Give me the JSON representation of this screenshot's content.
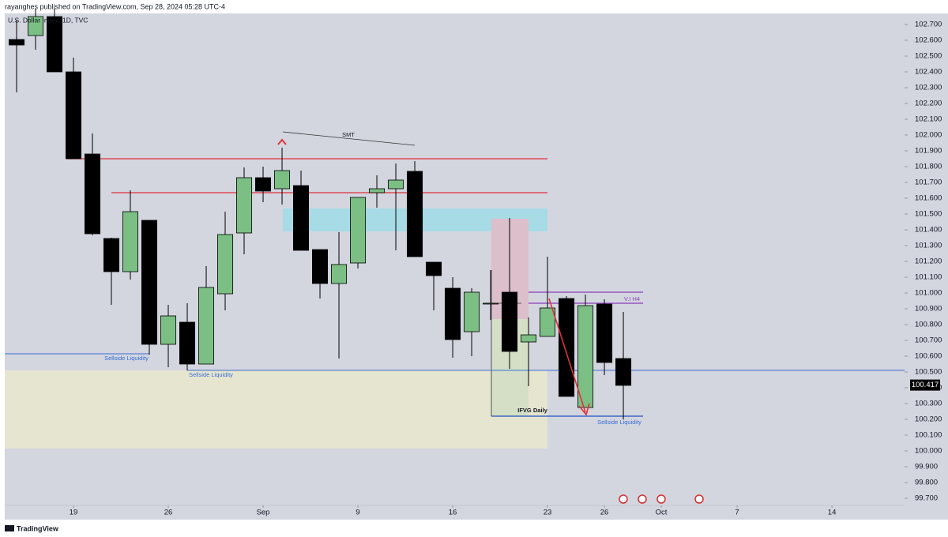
{
  "header": "rayanghes published on TradingView.com, Sep 28, 2024 05:28 UTC-4",
  "footer": "TradingView",
  "chart_data": {
    "type": "candlestick",
    "title": "U.S. Dollar Index, 1D, TVC",
    "x": [
      0,
      1,
      2,
      3,
      4,
      5,
      6,
      7,
      8,
      9,
      10,
      11,
      12,
      13,
      14,
      15,
      16,
      17,
      18,
      19,
      20,
      21,
      22,
      23,
      24,
      25,
      26,
      27,
      28,
      29,
      30,
      31,
      32
    ],
    "open": [
      102.605,
      102.63,
      102.75,
      102.4,
      101.88,
      101.345,
      101.135,
      101.46,
      100.675,
      100.815,
      100.55,
      100.995,
      101.38,
      101.73,
      101.66,
      101.68,
      101.275,
      101.06,
      101.19,
      101.635,
      101.66,
      101.77,
      101.195,
      101.03,
      100.755,
      100.935,
      101.005,
      100.69,
      100.725,
      100.965,
      100.275,
      100.93,
      100.585
    ],
    "high": [
      102.73,
      102.8,
      102.8,
      102.49,
      102.01,
      101.35,
      101.65,
      101.46,
      100.925,
      100.935,
      101.17,
      101.515,
      101.795,
      101.8,
      101.92,
      101.775,
      101.275,
      101.385,
      101.605,
      101.745,
      101.82,
      101.835,
      101.195,
      101.1,
      101.03,
      101.145,
      101.475,
      100.845,
      101.23,
      100.98,
      100.99,
      100.96,
      100.88
    ],
    "low": [
      102.27,
      102.54,
      102.4,
      101.85,
      101.365,
      100.925,
      101.085,
      100.61,
      100.53,
      100.51,
      100.55,
      100.89,
      101.245,
      101.575,
      101.56,
      101.27,
      100.965,
      100.585,
      101.155,
      101.54,
      101.27,
      101.23,
      100.89,
      100.59,
      100.6,
      100.83,
      100.52,
      100.41,
      100.725,
      100.345,
      100.275,
      100.48,
      100.2
    ],
    "close": [
      102.57,
      102.75,
      102.4,
      101.85,
      101.375,
      101.135,
      101.515,
      100.675,
      100.855,
      100.55,
      101.035,
      101.37,
      101.73,
      101.645,
      101.775,
      101.27,
      101.06,
      101.18,
      101.605,
      101.66,
      101.715,
      101.23,
      101.11,
      100.705,
      101.005,
      100.935,
      100.63,
      100.735,
      100.905,
      100.345,
      100.92,
      100.56,
      100.415
    ],
    "up_color": "#7cbf84",
    "down_color": "#000000",
    "last_price": 100.417,
    "xlim": [
      -0.625,
      46.83
    ],
    "xticks": [
      {
        "value": 3,
        "label": "19"
      },
      {
        "value": 8,
        "label": "26"
      },
      {
        "value": 13,
        "label": "Sep"
      },
      {
        "value": 18,
        "label": "9"
      },
      {
        "value": 23,
        "label": "16"
      },
      {
        "value": 28,
        "label": "23"
      },
      {
        "value": 31,
        "label": "26"
      },
      {
        "value": 34,
        "label": "Oct"
      },
      {
        "value": 38,
        "label": "7"
      },
      {
        "value": 43,
        "label": "14"
      }
    ],
    "ylim": [
      99.565,
      102.77
    ],
    "yticks": [
      {
        "value": 99.7,
        "label": "99.700"
      },
      {
        "value": 99.8,
        "label": "99.800"
      },
      {
        "value": 99.9,
        "label": "99.900"
      },
      {
        "value": 100.0,
        "label": "100.000"
      },
      {
        "value": 100.1,
        "label": "100.100"
      },
      {
        "value": 100.2,
        "label": "100.200"
      },
      {
        "value": 100.3,
        "label": "100.300"
      },
      {
        "value": 100.4,
        "label": "100.400"
      },
      {
        "value": 100.5,
        "label": "100.500"
      },
      {
        "value": 100.6,
        "label": "100.600"
      },
      {
        "value": 100.7,
        "label": "100.700"
      },
      {
        "value": 100.8,
        "label": "100.800"
      },
      {
        "value": 100.9,
        "label": "100.900"
      },
      {
        "value": 101.0,
        "label": "101.000"
      },
      {
        "value": 101.1,
        "label": "101.100"
      },
      {
        "value": 101.2,
        "label": "101.200"
      },
      {
        "value": 101.3,
        "label": "101.300"
      },
      {
        "value": 101.4,
        "label": "101.400"
      },
      {
        "value": 101.5,
        "label": "101.500"
      },
      {
        "value": 101.6,
        "label": "101.600"
      },
      {
        "value": 101.7,
        "label": "101.700"
      },
      {
        "value": 101.8,
        "label": "101.800"
      },
      {
        "value": 101.9,
        "label": "101.900"
      },
      {
        "value": 102.0,
        "label": "102.000"
      },
      {
        "value": 102.1,
        "label": "102.100"
      },
      {
        "value": 102.2,
        "label": "102.200"
      },
      {
        "value": 102.3,
        "label": "102.300"
      },
      {
        "value": 102.4,
        "label": "102.400"
      },
      {
        "value": 102.5,
        "label": "102.500"
      },
      {
        "value": 102.6,
        "label": "102.600"
      },
      {
        "value": 102.7,
        "label": "102.700"
      }
    ],
    "annotations": [
      "SMT",
      "Sellside Liquidity",
      "Sellside Liquidity",
      "Sellside Liquidity",
      "V.I H4",
      "IFVG Daily"
    ]
  }
}
